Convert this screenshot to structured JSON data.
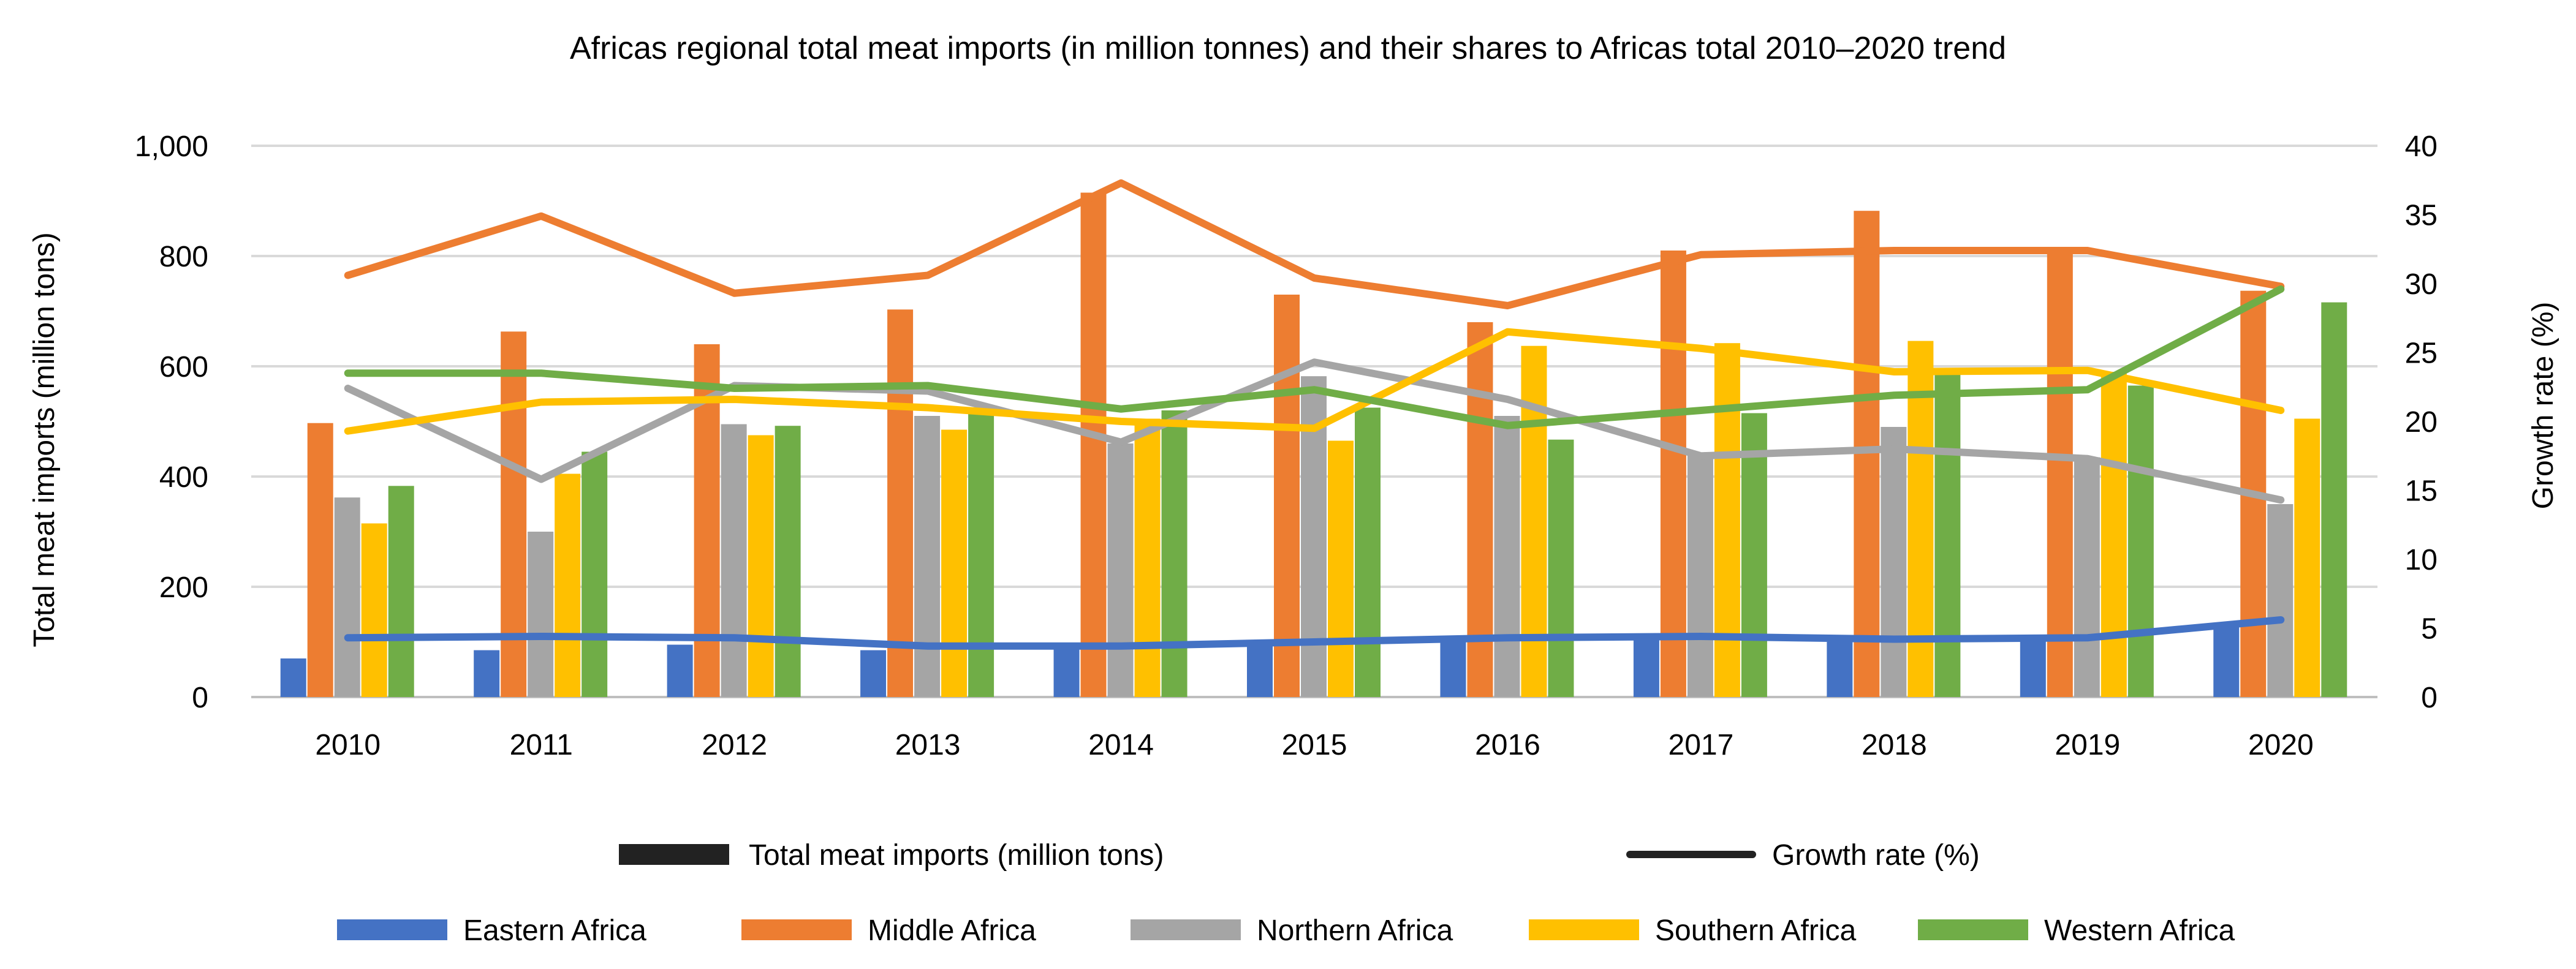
{
  "chart_data": {
    "type": "bar+line",
    "title": "Africas regional total meat imports (in million tonnes) and their shares to Africas total  2010–2020 trend",
    "ylabel_left": "Total meat imports (million tons)",
    "ylabel_right": "Growth rate (%)",
    "ylim_left": [
      0,
      1000
    ],
    "ylim_right": [
      0,
      40
    ],
    "yticks_left": [
      "0",
      "200",
      "400",
      "600",
      "800",
      "1,000"
    ],
    "yticks_right": [
      "0",
      "5",
      "10",
      "15",
      "20",
      "25",
      "30",
      "35",
      "40"
    ],
    "categories": [
      "2010",
      "2011",
      "2012",
      "2013",
      "2014",
      "2015",
      "2016",
      "2017",
      "2018",
      "2019",
      "2020"
    ],
    "bar_series": [
      {
        "name": "Eastern Africa",
        "color": "#4472C4",
        "values": [
          70,
          85,
          95,
          85,
          90,
          95,
          100,
          105,
          100,
          110,
          135
        ]
      },
      {
        "name": "Middle Africa",
        "color": "#ED7D31",
        "values": [
          497,
          663,
          640,
          703,
          915,
          730,
          680,
          810,
          882,
          805,
          737
        ]
      },
      {
        "name": "Northern Africa",
        "color": "#A5A5A5",
        "values": [
          362,
          300,
          495,
          510,
          460,
          582,
          510,
          440,
          490,
          435,
          350
        ]
      },
      {
        "name": "Southern Africa",
        "color": "#FFC000",
        "values": [
          315,
          405,
          475,
          485,
          505,
          465,
          637,
          642,
          646,
          590,
          505
        ]
      },
      {
        "name": "Western Africa",
        "color": "#70AD47",
        "values": [
          383,
          445,
          492,
          515,
          520,
          525,
          467,
          515,
          585,
          565,
          716
        ]
      }
    ],
    "line_series": [
      {
        "name": "Eastern Africa",
        "color": "#4472C4",
        "values": [
          4.3,
          4.4,
          4.3,
          3.7,
          3.7,
          4.0,
          4.3,
          4.4,
          4.2,
          4.3,
          5.6
        ]
      },
      {
        "name": "Middle Africa",
        "color": "#ED7D31",
        "values": [
          30.6,
          34.9,
          29.3,
          30.6,
          37.3,
          30.4,
          28.4,
          32.1,
          32.4,
          32.4,
          29.8
        ]
      },
      {
        "name": "Northern Africa",
        "color": "#A5A5A5",
        "values": [
          22.4,
          15.8,
          22.6,
          22.2,
          18.5,
          24.3,
          21.6,
          17.5,
          18.0,
          17.3,
          14.3
        ]
      },
      {
        "name": "Southern Africa",
        "color": "#FFC000",
        "values": [
          19.3,
          21.4,
          21.6,
          21.0,
          20.0,
          19.5,
          26.5,
          25.3,
          23.6,
          23.7,
          20.8
        ]
      },
      {
        "name": "Western Africa",
        "color": "#70AD47",
        "values": [
          23.5,
          23.5,
          22.4,
          22.6,
          20.9,
          22.3,
          19.7,
          20.8,
          21.9,
          22.3,
          29.6
        ]
      }
    ],
    "legend_type": {
      "bar_label": "Total meat imports (million tons)",
      "line_label": "Growth rate (%)"
    },
    "legend_regions": [
      "Eastern Africa",
      "Middle Africa",
      "Northern Africa",
      "Southern Africa",
      "Western Africa"
    ],
    "grid": true
  }
}
